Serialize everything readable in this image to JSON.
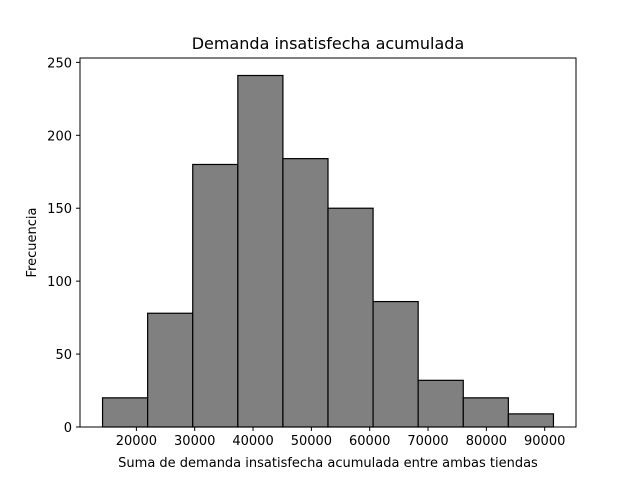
{
  "chart_data": {
    "type": "bar",
    "title": "Demanda insatisfecha acumulada",
    "xlabel": "Suma de demanda insatisfecha acumulada entre ambas tiendas",
    "ylabel": "Frecuencia",
    "bin_edges": [
      14200,
      21930,
      29660,
      37390,
      45120,
      52850,
      60580,
      68310,
      76040,
      83770,
      91500
    ],
    "values": [
      20,
      78,
      180,
      241,
      184,
      150,
      86,
      32,
      20,
      9
    ],
    "xlim": [
      10334,
      95366
    ],
    "ylim": [
      0,
      253
    ],
    "xticks": [
      20000,
      30000,
      40000,
      50000,
      60000,
      70000,
      80000,
      90000
    ],
    "xtick_labels": [
      "20000",
      "30000",
      "40000",
      "50000",
      "60000",
      "70000",
      "80000",
      "90000"
    ],
    "yticks": [
      0,
      50,
      100,
      150,
      200,
      250
    ],
    "ytick_labels": [
      "0",
      "50",
      "100",
      "150",
      "200",
      "250"
    ],
    "bar_color": "#808080",
    "edge_color": "#000000",
    "grid": false,
    "legend": "none"
  }
}
